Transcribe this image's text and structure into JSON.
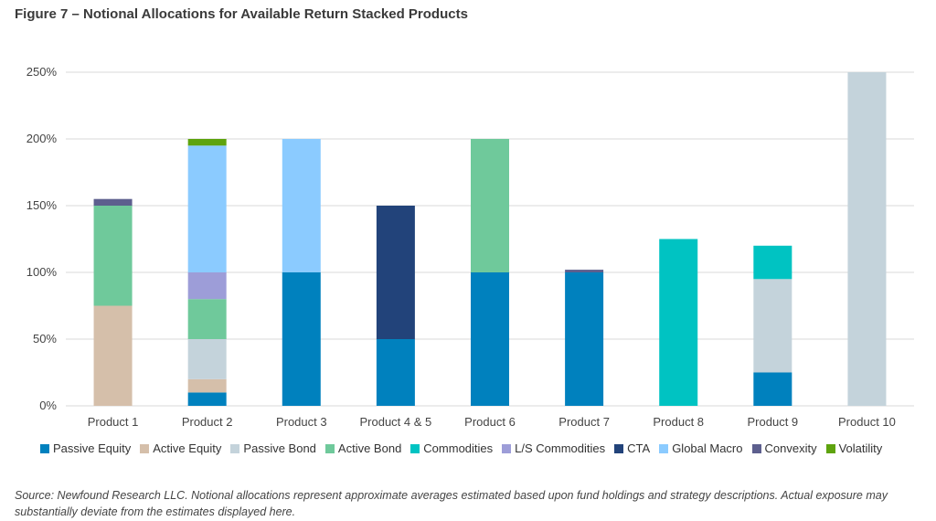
{
  "title": "Figure 7 – Notional Allocations for Available Return Stacked Products",
  "source": "Source: Newfound Research LLC. Notional allocations represent approximate averages estimated based upon fund holdings and strategy descriptions. Actual exposure may substantially deviate from the estimates displayed here.",
  "chart_data": {
    "type": "bar",
    "stacked": true,
    "title": "Figure 7 – Notional Allocations for Available Return Stacked Products",
    "xlabel": "",
    "ylabel": "",
    "ylim": [
      0,
      250
    ],
    "yticks": [
      "0%",
      "50%",
      "100%",
      "150%",
      "200%",
      "250%"
    ],
    "grid": true,
    "legend_position": "bottom",
    "categories": [
      "Product 1",
      "Product 2",
      "Product 3",
      "Product 4 & 5",
      "Product 6",
      "Product 7",
      "Product 8",
      "Product 9",
      "Product 10"
    ],
    "series": [
      {
        "name": "Passive Equity",
        "color": "#0081BE",
        "values": [
          0,
          10,
          100,
          50,
          100,
          100,
          0,
          25,
          0
        ]
      },
      {
        "name": "Active Equity",
        "color": "#D5BFAA",
        "values": [
          75,
          10,
          0,
          0,
          0,
          0,
          0,
          0,
          0
        ]
      },
      {
        "name": "Passive Bond",
        "color": "#C4D3DB",
        "values": [
          0,
          30,
          0,
          0,
          0,
          0,
          0,
          70,
          250
        ]
      },
      {
        "name": "Active Bond",
        "color": "#6FC99B",
        "values": [
          75,
          30,
          0,
          0,
          100,
          0,
          0,
          0,
          0
        ]
      },
      {
        "name": "Commodities",
        "color": "#00C3C2",
        "values": [
          0,
          0,
          0,
          0,
          0,
          0,
          125,
          25,
          0
        ]
      },
      {
        "name": "L/S Commodities",
        "color": "#9D9DD8",
        "values": [
          0,
          20,
          0,
          0,
          0,
          0,
          0,
          0,
          0
        ]
      },
      {
        "name": "CTA",
        "color": "#22437A",
        "values": [
          0,
          0,
          0,
          100,
          0,
          0,
          0,
          0,
          0
        ]
      },
      {
        "name": "Global Macro",
        "color": "#8BCBFF",
        "values": [
          0,
          95,
          100,
          0,
          0,
          0,
          0,
          0,
          0
        ]
      },
      {
        "name": "Convexity",
        "color": "#5D5F8E",
        "values": [
          5,
          0,
          0,
          0,
          0,
          2,
          0,
          0,
          0
        ]
      },
      {
        "name": "Volatility",
        "color": "#5EA30E",
        "values": [
          0,
          5,
          0,
          0,
          0,
          0,
          0,
          0,
          0
        ]
      }
    ]
  }
}
